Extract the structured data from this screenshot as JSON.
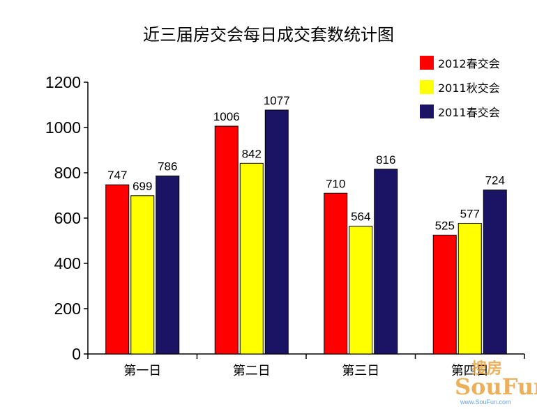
{
  "chart_data": {
    "type": "bar",
    "title": "近三届房交会每日成交套数统计图",
    "categories": [
      "第一日",
      "第二日",
      "第三日",
      "第四日"
    ],
    "series": [
      {
        "name": "2012春交会",
        "values": [
          747,
          1006,
          710,
          525
        ],
        "color": "#ff0000"
      },
      {
        "name": "2011秋交会",
        "values": [
          699,
          842,
          564,
          577
        ],
        "color": "#ffff00"
      },
      {
        "name": "2011春交会",
        "values": [
          786,
          1077,
          816,
          724
        ],
        "color": "#1b1464"
      }
    ],
    "ylim": [
      0,
      1200
    ],
    "yticks": [
      0,
      200,
      400,
      600,
      800,
      1000,
      1200
    ],
    "grid": false,
    "legend": "top-right"
  },
  "watermark": {
    "brand_cn": "搜房",
    "brand_en": "SouFun",
    "url": "www.SouFun.com",
    "colors": [
      "#e8a33d",
      "#4b8fd6"
    ]
  }
}
